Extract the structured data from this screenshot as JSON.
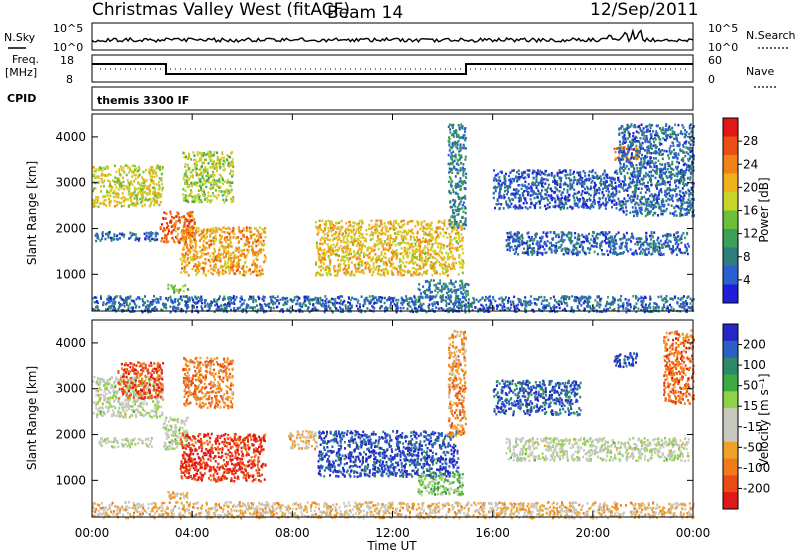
{
  "header": {
    "title": "Christmas Valley West (fitACF)",
    "beam": "Beam 14",
    "date": "12/Sep/2011"
  },
  "panels": {
    "nsky_label": "N.Sky",
    "nsky_ticks": [
      "10^5",
      "10^0"
    ],
    "nsearch_label": "N.Search",
    "nsearch_ticks": [
      "10^5",
      "10^0"
    ],
    "freq_label": "Freq.",
    "freq_unit": "[MHz]",
    "freq_ticks": [
      "18",
      "8"
    ],
    "nave_label": "Nave",
    "nave_ticks": [
      "60",
      "0"
    ],
    "cpid_label": "CPID",
    "cpid_text": "themis 3300 IF"
  },
  "colors": {
    "power_scale": [
      "#1f1fd9",
      "#2a5fd0",
      "#2e7d7d",
      "#3aa05a",
      "#6cbf3a",
      "#c8d42a",
      "#f0b21c",
      "#f08218",
      "#ea4e14",
      "#e01818"
    ],
    "velocity_scale": [
      "#2727c8",
      "#2a60c2",
      "#2a8a6a",
      "#3faa3f",
      "#8fd24a",
      "#c8c8c0",
      "#c8c8c0",
      "#f0a228",
      "#f07b18",
      "#ea4a14",
      "#e01818"
    ]
  },
  "chart_data": [
    {
      "type": "heatmap",
      "name": "power",
      "ylabel": "Slant Range [km]",
      "ylim": [
        200,
        4500
      ],
      "yticks": [
        "1000",
        "2000",
        "3000",
        "4000"
      ],
      "xlabel": "",
      "colorbar_label": "Power [dB]",
      "colorbar_ticks": [
        "4",
        "8",
        "12",
        "16",
        "20",
        "24",
        "28"
      ],
      "colorbar_range": [
        0,
        32
      ],
      "regions": [
        {
          "t0": 0.0,
          "t1": 2.8,
          "r0": 2500,
          "r1": 3400,
          "v": 18
        },
        {
          "t0": 0.1,
          "t1": 2.6,
          "r0": 1750,
          "r1": 1950,
          "v": 6
        },
        {
          "t0": 2.7,
          "t1": 4.1,
          "r0": 1700,
          "r1": 2400,
          "v": 26
        },
        {
          "t0": 3.5,
          "t1": 6.9,
          "r0": 1000,
          "r1": 2050,
          "v": 22
        },
        {
          "t0": 3.6,
          "t1": 5.6,
          "r0": 2600,
          "r1": 3700,
          "v": 16
        },
        {
          "t0": 3.0,
          "t1": 3.8,
          "r0": 600,
          "r1": 800,
          "v": 14
        },
        {
          "t0": 8.9,
          "t1": 14.8,
          "r0": 1000,
          "r1": 2200,
          "v": 20
        },
        {
          "t0": 13.0,
          "t1": 15.0,
          "r0": 500,
          "r1": 900,
          "v": 8
        },
        {
          "t0": 14.2,
          "t1": 14.9,
          "r0": 2000,
          "r1": 4300,
          "v": 8
        },
        {
          "t0": 16.5,
          "t1": 23.8,
          "r0": 1450,
          "r1": 1950,
          "v": 6
        },
        {
          "t0": 16.0,
          "t1": 21.0,
          "r0": 2450,
          "r1": 3300,
          "v": 5
        },
        {
          "t0": 20.8,
          "t1": 21.8,
          "r0": 3500,
          "r1": 3800,
          "v": 24
        },
        {
          "t0": 21.0,
          "t1": 24.0,
          "r0": 2300,
          "r1": 4300,
          "v": 6
        },
        {
          "t0": 0.0,
          "t1": 24.0,
          "r0": 200,
          "r1": 550,
          "v": 6
        }
      ]
    },
    {
      "type": "heatmap",
      "name": "velocity",
      "ylabel": "Slant Range [km]",
      "ylim": [
        200,
        4500
      ],
      "yticks": [
        "1000",
        "2000",
        "3000",
        "4000"
      ],
      "xlabel": "Time UT",
      "xticks": [
        "00:00",
        "04:00",
        "08:00",
        "12:00",
        "16:00",
        "20:00",
        "00:00"
      ],
      "xlim": [
        0,
        24
      ],
      "colorbar_label": "Velocity [m s⁻¹]",
      "colorbar_ticks": [
        "200",
        "100",
        "50",
        "15",
        "-15",
        "-50",
        "-100",
        "-200"
      ],
      "colorbar_range": [
        -250,
        250
      ],
      "regions": [
        {
          "t0": 0.0,
          "t1": 2.8,
          "r0": 2400,
          "r1": 3300,
          "v": 0
        },
        {
          "t0": 0.2,
          "t1": 2.4,
          "r0": 1750,
          "r1": 1950,
          "v": 0
        },
        {
          "t0": 1.0,
          "t1": 2.8,
          "r0": 2800,
          "r1": 3600,
          "v": -180
        },
        {
          "t0": 2.8,
          "t1": 3.8,
          "r0": 1700,
          "r1": 2400,
          "v": 0
        },
        {
          "t0": 3.5,
          "t1": 6.9,
          "r0": 1000,
          "r1": 2050,
          "v": -210
        },
        {
          "t0": 3.6,
          "t1": 5.6,
          "r0": 2600,
          "r1": 3700,
          "v": -130
        },
        {
          "t0": 3.0,
          "t1": 3.8,
          "r0": 600,
          "r1": 800,
          "v": -80
        },
        {
          "t0": 7.8,
          "t1": 9.0,
          "r0": 1700,
          "r1": 2100,
          "v": -60
        },
        {
          "t0": 9.0,
          "t1": 14.6,
          "r0": 1100,
          "r1": 2100,
          "v": 200
        },
        {
          "t0": 13.0,
          "t1": 14.8,
          "r0": 700,
          "r1": 1200,
          "v": 70
        },
        {
          "t0": 14.2,
          "t1": 14.9,
          "r0": 2000,
          "r1": 4300,
          "v": -120
        },
        {
          "t0": 16.5,
          "t1": 23.8,
          "r0": 1450,
          "r1": 1950,
          "v": 0
        },
        {
          "t0": 16.0,
          "t1": 19.5,
          "r0": 2450,
          "r1": 3200,
          "v": 180
        },
        {
          "t0": 20.8,
          "t1": 21.8,
          "r0": 3500,
          "r1": 3800,
          "v": 200
        },
        {
          "t0": 22.8,
          "t1": 24.0,
          "r0": 2700,
          "r1": 4300,
          "v": -150
        },
        {
          "t0": 0.0,
          "t1": 24.0,
          "r0": 200,
          "r1": 550,
          "v": -60
        }
      ]
    }
  ]
}
